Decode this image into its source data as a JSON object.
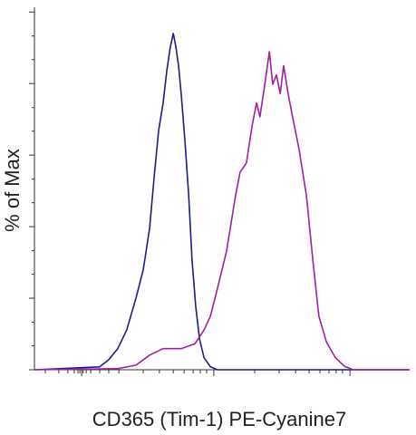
{
  "chart_data": {
    "type": "line",
    "x_label": "CD365 (Tim-1) PE-Cyanine7",
    "y_label": "% of Max",
    "xlim": [
      0,
      100
    ],
    "ylim": [
      0,
      102.6
    ],
    "xticks": [
      12.6,
      47.8,
      84.1
    ],
    "xticks_minor": [
      2.9,
      6.5,
      8.9,
      10.6,
      11.6,
      12.1,
      13.0,
      13.8,
      15.0,
      17.4,
      19.8,
      22.5,
      29.0,
      33.3,
      37.0,
      39.9,
      42.3,
      44.2,
      45.9,
      58.7,
      65.2,
      69.6,
      73.2,
      76.1,
      78.5,
      80.4,
      82.1
    ],
    "yticks": [
      0,
      20,
      40,
      60,
      80,
      100
    ],
    "yticks_minor": [
      6.7,
      13.3,
      26.7,
      33.3,
      46.7,
      53.3,
      66.7,
      73.3,
      86.7,
      93.3
    ],
    "series": [
      {
        "color": "#1c1c8e",
        "x": [
          0,
          17.4,
          19.8,
          22.2,
          24.6,
          27.1,
          29.0,
          30.7,
          31.9,
          33.1,
          34.3,
          35.3,
          36.2,
          37.0,
          37.7,
          38.4,
          39.1,
          40.1,
          41.1,
          42.0,
          43.0,
          44.0,
          45.2,
          46.9,
          48.8,
          100
        ],
        "values": [
          0,
          0.8,
          2.8,
          5.9,
          11.1,
          20.2,
          28.0,
          39.6,
          53.9,
          66.8,
          74.6,
          83.7,
          90.2,
          94.0,
          90.2,
          85.0,
          77.2,
          64.2,
          48.7,
          30.6,
          17.6,
          8.5,
          3.4,
          0.8,
          0,
          0
        ]
      },
      {
        "color": "#a21ea6",
        "x": [
          0,
          22.2,
          27.1,
          30.7,
          34.3,
          39.1,
          42.8,
          45.2,
          46.9,
          48.8,
          51.2,
          53.6,
          54.8,
          56.5,
          58.0,
          59.2,
          60.1,
          61.4,
          62.6,
          63.5,
          64.5,
          65.5,
          66.4,
          67.6,
          68.8,
          70.5,
          72.5,
          74.2,
          75.8,
          77.8,
          80.2,
          82.6,
          85.0,
          100
        ],
        "values": [
          0,
          0.3,
          1.3,
          4.1,
          5.9,
          5.9,
          7.3,
          11.1,
          15.0,
          22.8,
          33.2,
          48.7,
          55.2,
          57.8,
          68.1,
          74.6,
          70.7,
          79.8,
          88.9,
          79.8,
          82.4,
          77.2,
          85.0,
          77.2,
          70.7,
          61.7,
          48.7,
          30.6,
          15.0,
          7.8,
          3.4,
          1.0,
          0,
          0
        ]
      }
    ]
  }
}
